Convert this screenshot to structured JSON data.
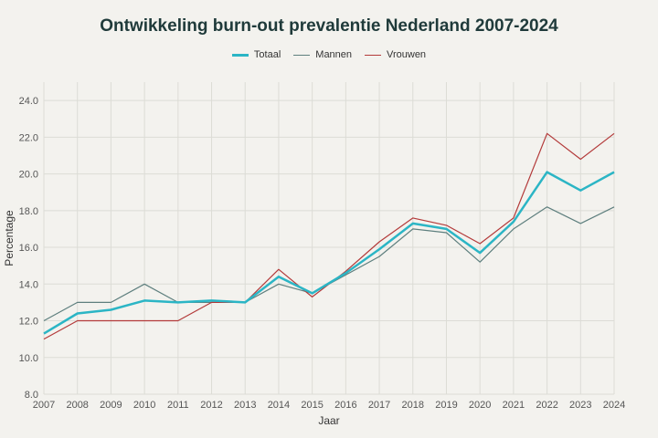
{
  "chart_data": {
    "type": "line",
    "title": "Ontwikkeling burn-out prevalentie Nederland 2007-2024",
    "xlabel": "Jaar",
    "ylabel": "Percentage",
    "ylim": [
      8.0,
      25.0
    ],
    "yticks": [
      "8.0",
      "10.0",
      "12.0",
      "14.0",
      "16.0",
      "18.0",
      "20.0",
      "22.0",
      "24.0"
    ],
    "ytick_values": [
      8,
      10,
      12,
      14,
      16,
      18,
      20,
      22,
      24
    ],
    "x": [
      "2007",
      "2008",
      "2009",
      "2010",
      "2011",
      "2012",
      "2013",
      "2014",
      "2015",
      "2016",
      "2017",
      "2018",
      "2019",
      "2020",
      "2021",
      "2022",
      "2023",
      "2024"
    ],
    "grid": true,
    "legend_position": "top-center",
    "series": [
      {
        "name": "Totaal",
        "color": "#2bb5c5",
        "width": 2.5,
        "values": [
          11.3,
          12.4,
          12.6,
          13.1,
          13.0,
          13.1,
          13.0,
          14.4,
          13.5,
          14.6,
          15.9,
          17.3,
          17.0,
          15.7,
          17.4,
          20.1,
          19.1,
          20.1
        ]
      },
      {
        "name": "Mannen",
        "color": "#5e7f7e",
        "width": 1.2,
        "values": [
          12.0,
          13.0,
          13.0,
          14.0,
          13.0,
          13.0,
          13.0,
          14.0,
          13.5,
          14.5,
          15.5,
          17.0,
          16.8,
          15.2,
          17.0,
          18.2,
          17.3,
          18.2
        ]
      },
      {
        "name": "Vrouwen",
        "color": "#b33a3a",
        "width": 1.2,
        "values": [
          11.0,
          12.0,
          12.0,
          12.0,
          12.0,
          13.0,
          13.0,
          14.8,
          13.3,
          14.7,
          16.3,
          17.6,
          17.2,
          16.2,
          17.6,
          22.2,
          20.8,
          22.2
        ]
      }
    ]
  }
}
